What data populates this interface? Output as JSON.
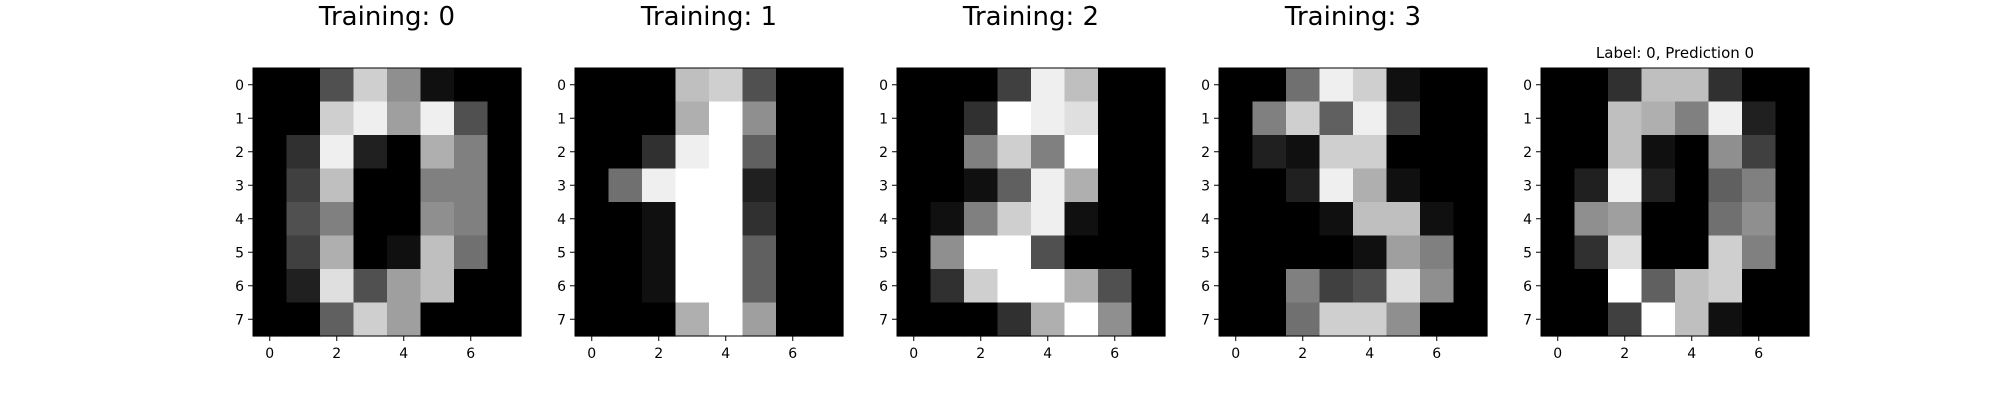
{
  "figure": {
    "background": "#ffffff",
    "cmap": "gray_r"
  },
  "chart_data": [
    {
      "type": "heatmap",
      "title": "Training: 0",
      "xticks": [
        0,
        2,
        4,
        6
      ],
      "yticks": [
        0,
        1,
        2,
        3,
        4,
        5,
        6,
        7
      ],
      "values": [
        [
          0,
          0,
          5,
          13,
          9,
          1,
          0,
          0
        ],
        [
          0,
          0,
          13,
          15,
          10,
          15,
          5,
          0
        ],
        [
          0,
          3,
          15,
          2,
          0,
          11,
          8,
          0
        ],
        [
          0,
          4,
          12,
          0,
          0,
          8,
          8,
          0
        ],
        [
          0,
          5,
          8,
          0,
          0,
          9,
          8,
          0
        ],
        [
          0,
          4,
          11,
          0,
          1,
          12,
          7,
          0
        ],
        [
          0,
          2,
          14,
          5,
          10,
          12,
          0,
          0
        ],
        [
          0,
          0,
          6,
          13,
          10,
          0,
          0,
          0
        ]
      ]
    },
    {
      "type": "heatmap",
      "title": "Training: 1",
      "xticks": [
        0,
        2,
        4,
        6
      ],
      "yticks": [
        0,
        1,
        2,
        3,
        4,
        5,
        6,
        7
      ],
      "values": [
        [
          0,
          0,
          0,
          12,
          13,
          5,
          0,
          0
        ],
        [
          0,
          0,
          0,
          11,
          16,
          9,
          0,
          0
        ],
        [
          0,
          0,
          3,
          15,
          16,
          6,
          0,
          0
        ],
        [
          0,
          7,
          15,
          16,
          16,
          2,
          0,
          0
        ],
        [
          0,
          0,
          1,
          16,
          16,
          3,
          0,
          0
        ],
        [
          0,
          0,
          1,
          16,
          16,
          6,
          0,
          0
        ],
        [
          0,
          0,
          1,
          16,
          16,
          6,
          0,
          0
        ],
        [
          0,
          0,
          0,
          11,
          16,
          10,
          0,
          0
        ]
      ]
    },
    {
      "type": "heatmap",
      "title": "Training: 2",
      "xticks": [
        0,
        2,
        4,
        6
      ],
      "yticks": [
        0,
        1,
        2,
        3,
        4,
        5,
        6,
        7
      ],
      "values": [
        [
          0,
          0,
          0,
          4,
          15,
          12,
          0,
          0
        ],
        [
          0,
          0,
          3,
          16,
          15,
          14,
          0,
          0
        ],
        [
          0,
          0,
          8,
          13,
          8,
          16,
          0,
          0
        ],
        [
          0,
          0,
          1,
          6,
          15,
          11,
          0,
          0
        ],
        [
          0,
          1,
          8,
          13,
          15,
          1,
          0,
          0
        ],
        [
          0,
          9,
          16,
          16,
          5,
          0,
          0,
          0
        ],
        [
          0,
          3,
          13,
          16,
          16,
          11,
          5,
          0
        ],
        [
          0,
          0,
          0,
          3,
          11,
          16,
          9,
          0
        ]
      ]
    },
    {
      "type": "heatmap",
      "title": "Training: 3",
      "xticks": [
        0,
        2,
        4,
        6
      ],
      "yticks": [
        0,
        1,
        2,
        3,
        4,
        5,
        6,
        7
      ],
      "values": [
        [
          0,
          0,
          7,
          15,
          13,
          1,
          0,
          0
        ],
        [
          0,
          8,
          13,
          6,
          15,
          4,
          0,
          0
        ],
        [
          0,
          2,
          1,
          13,
          13,
          0,
          0,
          0
        ],
        [
          0,
          0,
          2,
          15,
          11,
          1,
          0,
          0
        ],
        [
          0,
          0,
          0,
          1,
          12,
          12,
          1,
          0
        ],
        [
          0,
          0,
          0,
          0,
          1,
          10,
          8,
          0
        ],
        [
          0,
          0,
          8,
          4,
          5,
          14,
          9,
          0
        ],
        [
          0,
          0,
          7,
          13,
          13,
          9,
          0,
          0
        ]
      ]
    },
    {
      "type": "heatmap",
      "title": "Label: 0, Prediction 0",
      "xticks": [
        0,
        2,
        4,
        6
      ],
      "yticks": [
        0,
        1,
        2,
        3,
        4,
        5,
        6,
        7
      ],
      "values": [
        [
          0,
          0,
          3,
          12,
          12,
          3,
          0,
          0
        ],
        [
          0,
          0,
          12,
          11,
          8,
          15,
          2,
          0
        ],
        [
          0,
          0,
          12,
          1,
          0,
          9,
          4,
          0
        ],
        [
          0,
          2,
          15,
          2,
          0,
          6,
          8,
          0
        ],
        [
          0,
          9,
          10,
          0,
          0,
          7,
          9,
          0
        ],
        [
          0,
          3,
          14,
          0,
          0,
          13,
          8,
          0
        ],
        [
          0,
          0,
          16,
          6,
          12,
          13,
          0,
          0
        ],
        [
          0,
          0,
          4,
          16,
          12,
          1,
          0,
          0
        ]
      ]
    }
  ]
}
